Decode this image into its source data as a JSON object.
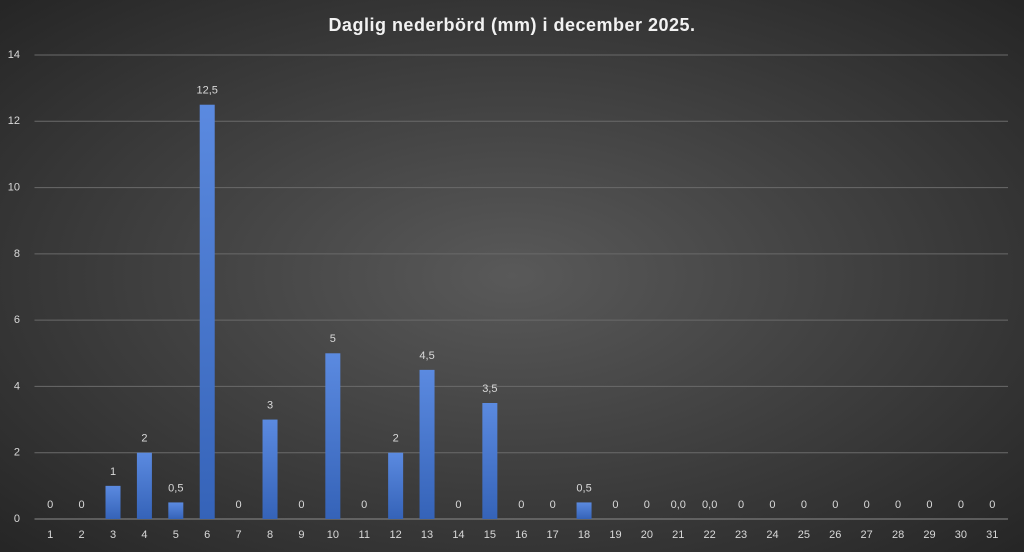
{
  "chart_data": {
    "type": "bar",
    "title": "Daglig nederbörd (mm) i december 2025.",
    "categories": [
      "1",
      "2",
      "3",
      "4",
      "5",
      "6",
      "7",
      "8",
      "9",
      "10",
      "11",
      "12",
      "13",
      "14",
      "15",
      "16",
      "17",
      "18",
      "19",
      "20",
      "21",
      "22",
      "23",
      "24",
      "25",
      "26",
      "27",
      "28",
      "29",
      "30",
      "31"
    ],
    "values": [
      0,
      0,
      1,
      2,
      0.5,
      12.5,
      0,
      3,
      0,
      5,
      0,
      2,
      4.5,
      0,
      3.5,
      0,
      0,
      0.5,
      0,
      0,
      0,
      0,
      0,
      0,
      0,
      0,
      0,
      0,
      0,
      0,
      0
    ],
    "value_labels": [
      "0",
      "0",
      "1",
      "2",
      "0,5",
      "12,5",
      "0",
      "3",
      "0",
      "5",
      "0",
      "2",
      "4,5",
      "0",
      "3,5",
      "0",
      "0",
      "0,5",
      "0",
      "0",
      "0,0",
      "0,0",
      "0",
      "0",
      "0",
      "0",
      "0",
      "0",
      "0",
      "0",
      "0"
    ],
    "color": "#4472c4",
    "ylim": [
      0,
      14
    ],
    "yticks": [
      0,
      2,
      4,
      6,
      8,
      10,
      12,
      14
    ],
    "grid": true
  }
}
